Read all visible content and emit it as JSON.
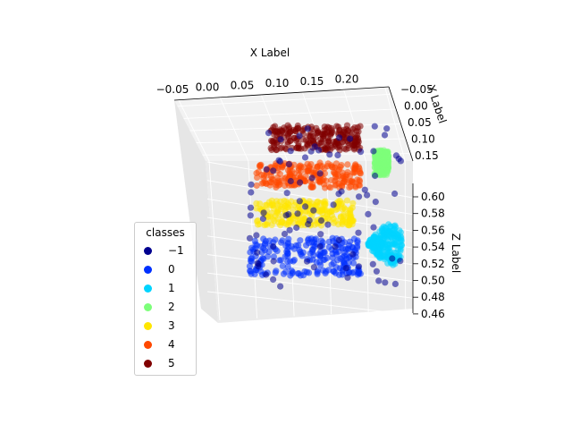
{
  "chart_data": {
    "type": "scatter",
    "projection": "3d",
    "xlabel": "X Label",
    "ylabel": "Y Label",
    "zlabel": "Z Label",
    "x_ticks": [
      "−0.05",
      "0.00",
      "0.05",
      "0.10",
      "0.15",
      "0.20"
    ],
    "y_ticks": [
      "−0.05",
      "0.00",
      "0.05",
      "0.10",
      "0.15"
    ],
    "z_ticks": [
      "0.60",
      "0.58",
      "0.56",
      "0.54",
      "0.52",
      "0.50",
      "0.48",
      "0.46"
    ],
    "xlim": [
      -0.05,
      0.22
    ],
    "ylim": [
      -0.05,
      0.17
    ],
    "zlim": [
      0.46,
      0.61
    ],
    "grid": true,
    "legend": {
      "title": "classes",
      "placement": "center-left",
      "entries": [
        {
          "label": "−1",
          "color": "#00008f"
        },
        {
          "label": "0",
          "color": "#0030ff"
        },
        {
          "label": "1",
          "color": "#00d4ff"
        },
        {
          "label": "2",
          "color": "#7dff7a"
        },
        {
          "label": "3",
          "color": "#ffe600"
        },
        {
          "label": "4",
          "color": "#ff4800"
        },
        {
          "label": "5",
          "color": "#800000"
        }
      ]
    },
    "series": [
      {
        "name": "5",
        "color": "#800000",
        "x_range": [
          0.02,
          0.15
        ],
        "z_range": [
          0.59,
          0.61
        ]
      },
      {
        "name": "4",
        "color": "#ff4800",
        "x_range": [
          0.0,
          0.15
        ],
        "z_range": [
          0.56,
          0.58
        ]
      },
      {
        "name": "3",
        "color": "#ffe600",
        "x_range": [
          0.0,
          0.14
        ],
        "z_range": [
          0.53,
          0.55
        ]
      },
      {
        "name": "0",
        "color": "#0030ff",
        "x_range": [
          -0.01,
          0.15
        ],
        "z_range": [
          0.49,
          0.52
        ]
      },
      {
        "name": "2",
        "color": "#7dff7a",
        "x_range": [
          0.17,
          0.19
        ],
        "z_range": [
          0.57,
          0.59
        ]
      },
      {
        "name": "1",
        "color": "#00d4ff",
        "x_range": [
          0.16,
          0.21
        ],
        "z_range": [
          0.49,
          0.54
        ]
      },
      {
        "name": "−1",
        "color": "#00008f",
        "x_range": [
          -0.01,
          0.21
        ],
        "z_range": [
          0.48,
          0.61
        ]
      }
    ]
  }
}
